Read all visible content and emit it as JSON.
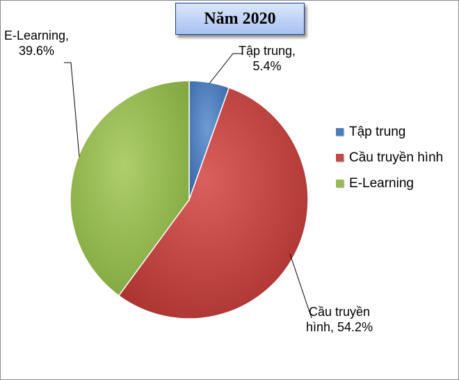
{
  "chart_data": {
    "type": "pie",
    "title": "Năm 2020",
    "categories": [
      "Tập trung",
      "Cầu truyền hình",
      "E-Learning"
    ],
    "values": [
      5.4,
      54.2,
      39.6
    ],
    "unit": "%",
    "colors": [
      "#4a7ebb",
      "#be4b48",
      "#98b954"
    ],
    "data_labels": [
      {
        "line1": "Tập trung,",
        "line2": "5.4%"
      },
      {
        "line1": "Cầu truyền",
        "line2": "hình, 54.2%"
      },
      {
        "line1": "E-Learning,",
        "line2": "39.6%"
      }
    ],
    "legend": {
      "position": "right",
      "items": [
        {
          "label": "Tập trung",
          "color": "#4a7ebb"
        },
        {
          "label": "Cầu truyền hình",
          "color": "#be4b48"
        },
        {
          "label": "E-Learning",
          "color": "#98b954"
        }
      ]
    }
  }
}
